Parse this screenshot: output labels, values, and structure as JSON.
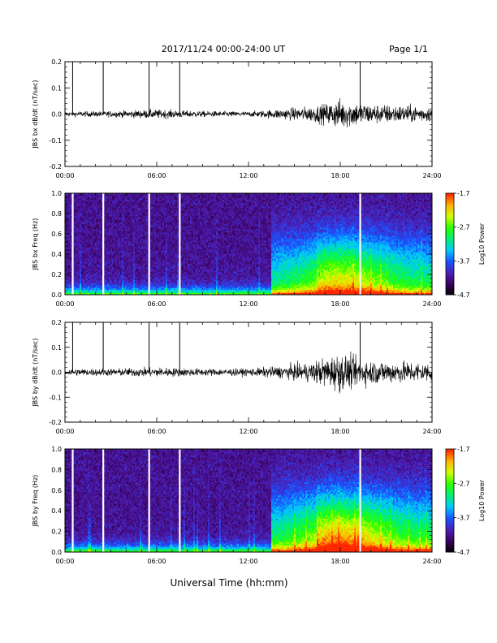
{
  "header": {
    "title": "2017/11/24  00:00-24:00 UT",
    "page": "Page 1/1"
  },
  "xlabel": "Universal Time (hh:mm)",
  "colorbar": {
    "label": "Log10 Power",
    "ticks": [
      "-1.7",
      "-2.7",
      "-3.7",
      "-4.7"
    ],
    "range": [
      -4.7,
      -1.7
    ],
    "colors": [
      "#000000",
      "#3c005a",
      "#4b1fb4",
      "#1a52ff",
      "#00c8ff",
      "#00f078",
      "#28ff00",
      "#d2ff00",
      "#ffb400",
      "#ff2800"
    ]
  },
  "chart_data": [
    {
      "type": "line",
      "ylabel": "JBS bx dB/dt (nT/sec)",
      "xlim": [
        0,
        24
      ],
      "ylim": [
        -0.2,
        0.2
      ],
      "xticks": [
        "00:00",
        "06:00",
        "12:00",
        "18:00",
        "24:00"
      ],
      "yticks": [
        "0.2",
        "0.1",
        "0.0",
        "-0.1",
        "-0.2"
      ],
      "spikes_hours": [
        0.5,
        2.5,
        5.5,
        7.5,
        19.3
      ],
      "envelope": {
        "x": [
          0,
          3,
          6,
          9,
          12,
          14,
          16,
          17,
          18,
          19,
          20,
          22,
          24
        ],
        "amplitude": [
          0.01,
          0.012,
          0.018,
          0.012,
          0.01,
          0.02,
          0.03,
          0.04,
          0.06,
          0.05,
          0.04,
          0.035,
          0.03
        ]
      }
    },
    {
      "type": "heatmap",
      "ylabel": "JBS bx Freq (Hz)",
      "xlim": [
        0,
        24
      ],
      "ylim": [
        0.0,
        1.0
      ],
      "xticks": [
        "00:00",
        "06:00",
        "12:00",
        "18:00",
        "24:00"
      ],
      "yticks": [
        "1.0",
        "0.8",
        "0.6",
        "0.4",
        "0.2",
        "0.0"
      ],
      "gaps_hours": [
        0.5,
        2.5,
        5.5,
        7.5,
        19.3
      ]
    },
    {
      "type": "line",
      "ylabel": "JBS by dB/dt (nT/sec)",
      "xlim": [
        0,
        24
      ],
      "ylim": [
        -0.2,
        0.2
      ],
      "xticks": [
        "00:00",
        "06:00",
        "12:00",
        "18:00",
        "24:00"
      ],
      "yticks": [
        "0.2",
        "0.1",
        "0.0",
        "-0.1",
        "-0.2"
      ],
      "spikes_hours": [
        0.5,
        2.5,
        5.5,
        7.5,
        19.3
      ],
      "envelope": {
        "x": [
          0,
          3,
          6,
          9,
          12,
          14,
          16,
          17,
          18,
          19,
          20,
          22,
          24
        ],
        "amplitude": [
          0.015,
          0.015,
          0.02,
          0.015,
          0.015,
          0.025,
          0.04,
          0.06,
          0.08,
          0.06,
          0.05,
          0.045,
          0.04
        ]
      }
    },
    {
      "type": "heatmap",
      "ylabel": "JBS by Freq (Hz)",
      "xlim": [
        0,
        24
      ],
      "ylim": [
        0.0,
        1.0
      ],
      "xticks": [
        "00:00",
        "06:00",
        "12:00",
        "18:00",
        "24:00"
      ],
      "yticks": [
        "1.0",
        "0.8",
        "0.6",
        "0.4",
        "0.2",
        "0.0"
      ],
      "gaps_hours": [
        0.5,
        2.5,
        5.5,
        7.5,
        19.3
      ]
    }
  ]
}
